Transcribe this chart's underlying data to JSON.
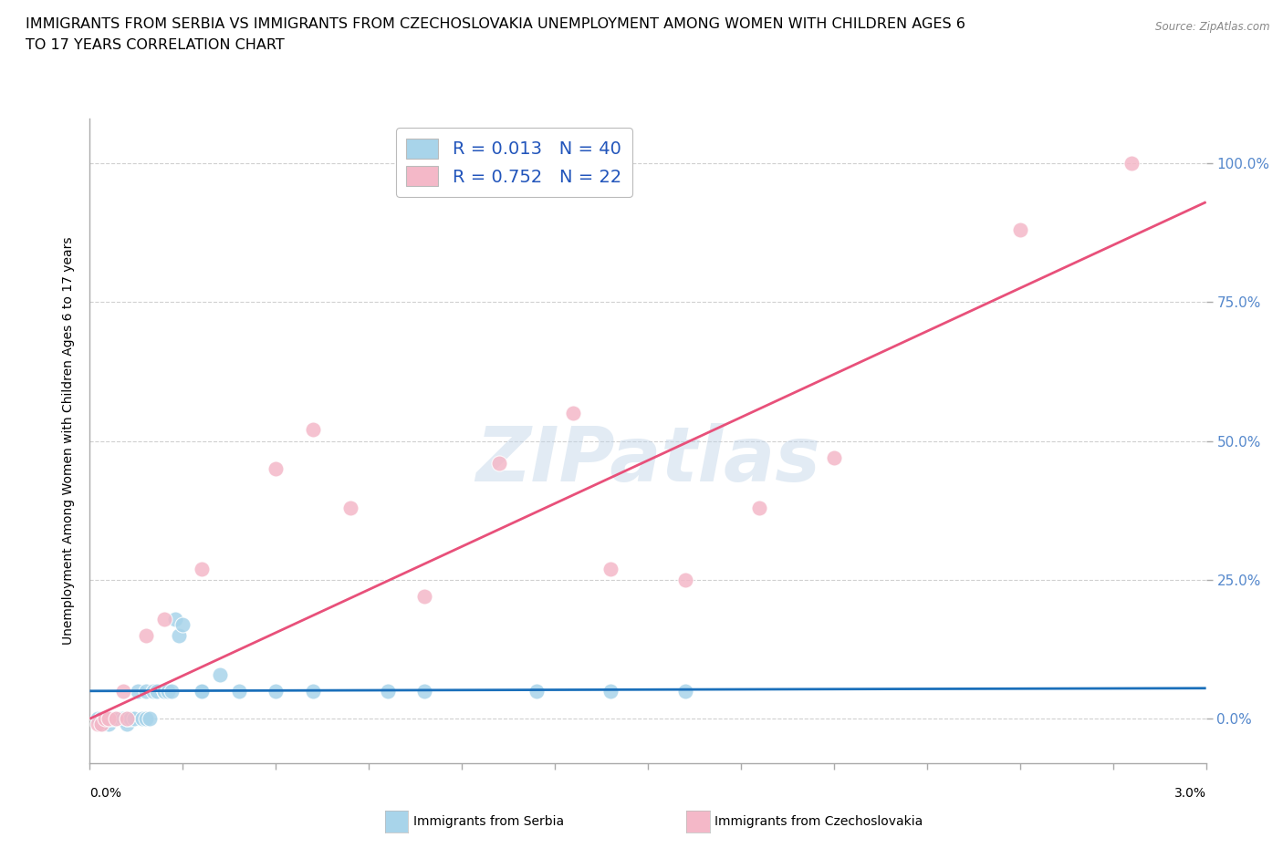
{
  "title_line1": "IMMIGRANTS FROM SERBIA VS IMMIGRANTS FROM CZECHOSLOVAKIA UNEMPLOYMENT AMONG WOMEN WITH CHILDREN AGES 6",
  "title_line2": "TO 17 YEARS CORRELATION CHART",
  "source": "Source: ZipAtlas.com",
  "ylabel": "Unemployment Among Women with Children Ages 6 to 17 years",
  "legend1_label": "R = 0.013   N = 40",
  "legend2_label": "R = 0.752   N = 22",
  "watermark": "ZIPatlas",
  "serbia_color": "#a8d4ea",
  "czechoslovakia_color": "#f4b8c8",
  "serbia_line_color": "#1a6fba",
  "czechoslovakia_line_color": "#e8507a",
  "serbia_x": [
    0.0002,
    0.0003,
    0.0003,
    0.0004,
    0.0004,
    0.0005,
    0.0005,
    0.0006,
    0.0007,
    0.0008,
    0.0009,
    0.001,
    0.001,
    0.0011,
    0.0012,
    0.0013,
    0.0014,
    0.0015,
    0.0015,
    0.0016,
    0.0017,
    0.0018,
    0.002,
    0.002,
    0.0021,
    0.0022,
    0.0023,
    0.0024,
    0.0025,
    0.003,
    0.003,
    0.0035,
    0.004,
    0.005,
    0.006,
    0.008,
    0.009,
    0.012,
    0.014,
    0.016
  ],
  "serbia_y": [
    0.0,
    0.0,
    -0.01,
    0.0,
    0.0,
    -0.01,
    0.0,
    0.0,
    0.0,
    0.0,
    0.0,
    -0.01,
    0.0,
    0.0,
    0.0,
    0.05,
    0.0,
    0.0,
    0.05,
    0.0,
    0.05,
    0.05,
    0.05,
    0.05,
    0.05,
    0.05,
    0.18,
    0.15,
    0.17,
    0.05,
    0.05,
    0.08,
    0.05,
    0.05,
    0.05,
    0.05,
    0.05,
    0.05,
    0.05,
    0.05
  ],
  "czechoslovakia_x": [
    0.0002,
    0.0003,
    0.0004,
    0.0005,
    0.0007,
    0.0009,
    0.001,
    0.0015,
    0.002,
    0.003,
    0.005,
    0.006,
    0.007,
    0.009,
    0.011,
    0.013,
    0.014,
    0.016,
    0.018,
    0.02,
    0.025,
    0.028
  ],
  "czechoslovakia_y": [
    -0.01,
    -0.01,
    0.0,
    0.0,
    0.0,
    0.05,
    0.0,
    0.15,
    0.18,
    0.27,
    0.45,
    0.52,
    0.38,
    0.22,
    0.46,
    0.55,
    0.27,
    0.25,
    0.38,
    0.47,
    0.88,
    1.0
  ],
  "serbia_trendline_x": [
    0.0,
    0.03
  ],
  "serbia_trendline_y": [
    0.05,
    0.055
  ],
  "czechoslovakia_trendline_x": [
    0.0,
    0.03
  ],
  "czechoslovakia_trendline_y": [
    0.0,
    0.93
  ],
  "xlim": [
    0.0,
    0.03
  ],
  "ylim": [
    -0.08,
    1.08
  ],
  "yticks": [
    0.0,
    0.25,
    0.5,
    0.75,
    1.0
  ],
  "ytick_labels": [
    "0.0%",
    "25.0%",
    "50.0%",
    "75.0%",
    "100.0%"
  ],
  "xtick_count": 13,
  "background_color": "#ffffff",
  "grid_color": "#d0d0d0",
  "title_fontsize": 11.5,
  "axis_label_fontsize": 10,
  "legend_fontsize": 14,
  "watermark_color": "#c0d4e8",
  "watermark_alpha": 0.45
}
